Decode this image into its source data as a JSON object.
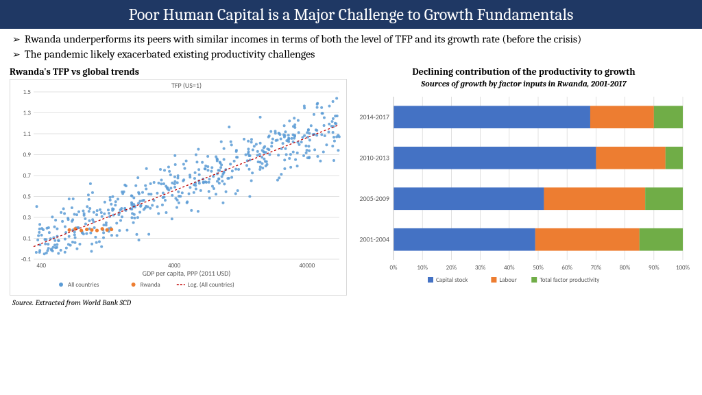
{
  "header": {
    "title": "Poor Human Capital is a Major Challenge to Growth Fundamentals"
  },
  "bullets": [
    "Rwanda underperforms its peers with similar incomes in terms of both the level of TFP and its growth rate (before the crisis)",
    "The pandemic likely exacerbated existing productivity challenges"
  ],
  "left_chart": {
    "title": "Rwanda's TFP vs global trends",
    "inner_title": "TFP (US=1)",
    "xlabel": "GDP per capita, PPP (2011 USD)",
    "xticks": [
      400,
      4000,
      40000
    ],
    "yticks": [
      -0.1,
      0.1,
      0.3,
      0.5,
      0.7,
      0.9,
      1.1,
      1.3,
      1.5
    ],
    "legend": [
      {
        "label": "All countries",
        "color": "#5b9bd5",
        "type": "dot"
      },
      {
        "label": "Rwanda",
        "color": "#ed7d31",
        "type": "dot"
      },
      {
        "label": "Log. (All countries)",
        "color": "#c00000",
        "type": "dash"
      }
    ],
    "scatter_seed": 42,
    "scatter_n": 520,
    "scatter_color": "#5b9bd5",
    "rwanda_color": "#ed7d31",
    "trend_color": "#c00000",
    "grid_color": "#d9d9d9",
    "axis_text_color": "#595959"
  },
  "right_chart": {
    "title": "Declining contribution of the productivity to growth",
    "subtitle": "Sources of growth by factor inputs in Rwanda, 2001-2017",
    "categories": [
      "2014-2017",
      "2010-2013",
      "2005-2009",
      "2001-2004"
    ],
    "series": [
      {
        "name": "Capital stock",
        "color": "#4472c4"
      },
      {
        "name": "Labour",
        "color": "#ed7d31"
      },
      {
        "name": "Total factor productivity",
        "color": "#70ad47"
      }
    ],
    "data": [
      [
        68,
        22,
        10
      ],
      [
        70,
        24,
        6
      ],
      [
        52,
        35,
        13
      ],
      [
        49,
        36,
        15
      ]
    ],
    "xticks": [
      0,
      10,
      20,
      30,
      40,
      50,
      60,
      70,
      80,
      90,
      100
    ],
    "grid_color": "#d9d9d9",
    "axis_text_color": "#595959"
  },
  "source": "Source. Extracted from World Bank SCD"
}
